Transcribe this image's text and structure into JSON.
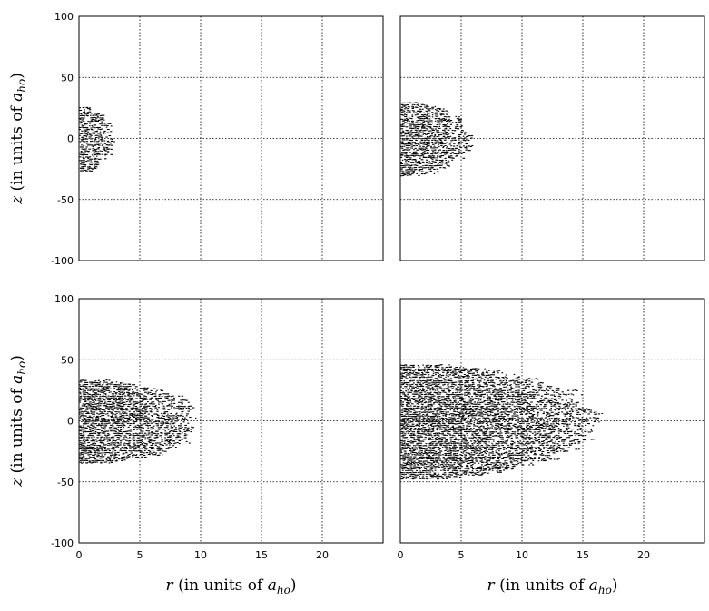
{
  "chart_data": [
    {
      "type": "scatter",
      "panel": "top-left",
      "xlabel": "",
      "ylabel_parts": [
        "z",
        " (in units of ",
        "a",
        "ho",
        ")"
      ],
      "xlim": [
        0,
        25
      ],
      "ylim": [
        100,
        -100
      ],
      "xticks": [],
      "yticks": [
        "-100",
        "-50",
        "0",
        "50",
        "100"
      ],
      "grid": true,
      "cloud": {
        "rmax": 2.8,
        "zhalf": 27,
        "shape": "semi-ellipse"
      }
    },
    {
      "type": "scatter",
      "panel": "top-right",
      "xlabel": "",
      "xlim": [
        0,
        25
      ],
      "ylim": [
        100,
        -100
      ],
      "xticks": [],
      "yticks": [],
      "grid": true,
      "cloud": {
        "rmax": 5.8,
        "zhalf": 31,
        "shape": "semi-ellipse"
      }
    },
    {
      "type": "scatter",
      "panel": "bottom-left",
      "xlabel_parts": [
        "r",
        " (in units of ",
        "a",
        "ho",
        ")"
      ],
      "ylabel_parts": [
        "z",
        " (in units of ",
        "a",
        "ho",
        ")"
      ],
      "xlim": [
        0,
        25
      ],
      "ylim": [
        100,
        -100
      ],
      "xticks": [
        "0",
        "5",
        "10",
        "15",
        "20"
      ],
      "yticks": [
        "-100",
        "-50",
        "0",
        "50",
        "100"
      ],
      "grid": true,
      "cloud": {
        "rmax": 9.8,
        "zhalf": 35,
        "shape": "rounded-bullet"
      }
    },
    {
      "type": "scatter",
      "panel": "bottom-right",
      "xlabel_parts": [
        "r",
        " (in units of ",
        "a",
        "ho",
        ")"
      ],
      "xlim": [
        0,
        25
      ],
      "ylim": [
        100,
        -100
      ],
      "xticks": [
        "0",
        "5",
        "10",
        "15",
        "20"
      ],
      "yticks": [],
      "grid": true,
      "cloud": {
        "rmax": 16,
        "zhalf": 48,
        "shape": "rounded-bullet"
      }
    }
  ]
}
